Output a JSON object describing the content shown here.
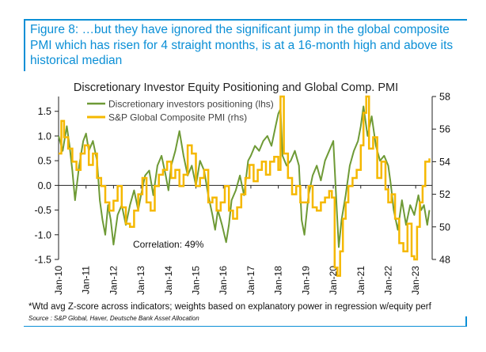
{
  "figure": {
    "title": "Figure 8: …but they have ignored the significant jump in the global composite PMI which has risen for 4 straight months, is at a 16-month high and above its historical median",
    "footnote": "*Wtd avg Z-score across indicators; weights based on explanatory power in regression w/equity perf",
    "source": "Source : S&P Global, Haver, Deutsche Bank Asset Allocation"
  },
  "colors": {
    "accent": "#0b8fd6",
    "positioning": "#6e9a36",
    "pmi": "#f5b800",
    "axis": "#222222"
  },
  "chart_data": {
    "type": "line",
    "title": "Discretionary Investor Equity Positioning and Global Comp. PMI",
    "annotation": "Correlation: 49%",
    "xlim": [
      2010,
      2023.6
    ],
    "x_ticks": [
      {
        "label": "Jan-10",
        "value": 2010
      },
      {
        "label": "Jan-11",
        "value": 2011
      },
      {
        "label": "Jan-12",
        "value": 2012
      },
      {
        "label": "Jan-13",
        "value": 2013
      },
      {
        "label": "Jan-14",
        "value": 2014
      },
      {
        "label": "Jan-15",
        "value": 2015
      },
      {
        "label": "Jan-16",
        "value": 2016
      },
      {
        "label": "Jan-17",
        "value": 2017
      },
      {
        "label": "Jan-18",
        "value": 2018
      },
      {
        "label": "Jan-19",
        "value": 2019
      },
      {
        "label": "Jan-20",
        "value": 2020
      },
      {
        "label": "Jan-21",
        "value": 2021
      },
      {
        "label": "Jan-22",
        "value": 2022
      },
      {
        "label": "Jan-23",
        "value": 2023
      }
    ],
    "y_left": {
      "lim": [
        -1.5,
        1.8
      ],
      "ticks": [
        {
          "label": "1.5",
          "value": 1.5
        },
        {
          "label": "1.0",
          "value": 1.0
        },
        {
          "label": "0.5",
          "value": 0.5
        },
        {
          "label": "0.0",
          "value": 0.0
        },
        {
          "label": "-0.5",
          "value": -0.5
        },
        {
          "label": "-1.0",
          "value": -1.0
        },
        {
          "label": "-1.5",
          "value": -1.5
        }
      ]
    },
    "y_right": {
      "lim": [
        48,
        58
      ],
      "ticks": [
        {
          "label": "58",
          "value": 58
        },
        {
          "label": "56",
          "value": 56
        },
        {
          "label": "54",
          "value": 54
        },
        {
          "label": "52",
          "value": 52
        },
        {
          "label": "50",
          "value": 50
        },
        {
          "label": "48",
          "value": 48
        }
      ]
    },
    "series": [
      {
        "name": "Discretionary investors positioning (lhs)",
        "axis": "left",
        "x": [
          2010.0,
          2010.15,
          2010.3,
          2010.4,
          2010.5,
          2010.6,
          2010.75,
          2010.9,
          2011.0,
          2011.1,
          2011.25,
          2011.4,
          2011.5,
          2011.6,
          2011.7,
          2011.8,
          2011.9,
          2012.0,
          2012.15,
          2012.3,
          2012.45,
          2012.6,
          2012.75,
          2012.9,
          2013.0,
          2013.15,
          2013.3,
          2013.45,
          2013.6,
          2013.75,
          2013.9,
          2014.0,
          2014.1,
          2014.25,
          2014.4,
          2014.55,
          2014.7,
          2014.85,
          2015.0,
          2015.15,
          2015.3,
          2015.45,
          2015.6,
          2015.7,
          2015.8,
          2015.95,
          2016.1,
          2016.2,
          2016.3,
          2016.45,
          2016.6,
          2016.75,
          2016.9,
          2017.0,
          2017.15,
          2017.3,
          2017.45,
          2017.6,
          2017.75,
          2017.9,
          2018.0,
          2018.08,
          2018.15,
          2018.3,
          2018.45,
          2018.6,
          2018.75,
          2018.85,
          2018.95,
          2019.1,
          2019.25,
          2019.4,
          2019.55,
          2019.7,
          2019.85,
          2020.0,
          2020.12,
          2020.2,
          2020.3,
          2020.45,
          2020.6,
          2020.75,
          2020.9,
          2021.0,
          2021.1,
          2021.25,
          2021.4,
          2021.55,
          2021.7,
          2021.85,
          2022.0,
          2022.1,
          2022.2,
          2022.35,
          2022.5,
          2022.65,
          2022.8,
          2022.95,
          2023.1,
          2023.2,
          2023.3,
          2023.42,
          2023.5
        ],
        "y": [
          1.0,
          0.7,
          1.2,
          0.8,
          0.3,
          -0.3,
          0.4,
          0.9,
          1.05,
          0.7,
          0.9,
          0.5,
          -0.3,
          -0.7,
          -1.0,
          -0.4,
          -0.7,
          -1.2,
          -0.6,
          -0.4,
          -0.8,
          -0.4,
          -0.1,
          -0.5,
          -0.2,
          0.2,
          0.3,
          -0.2,
          0.4,
          0.6,
          0.2,
          -0.1,
          0.4,
          0.7,
          1.1,
          0.6,
          0.2,
          0.4,
          0.0,
          0.5,
          0.3,
          -0.2,
          -0.6,
          -0.9,
          -0.5,
          -0.8,
          -1.15,
          -0.8,
          -0.3,
          -0.1,
          0.2,
          -0.2,
          0.5,
          0.6,
          0.8,
          0.7,
          0.9,
          1.0,
          0.8,
          1.2,
          1.45,
          1.55,
          0.6,
          0.4,
          0.5,
          0.7,
          0.4,
          -0.7,
          -1.0,
          -0.2,
          0.2,
          0.4,
          0.1,
          0.5,
          0.7,
          0.9,
          -0.4,
          -1.25,
          -0.7,
          -0.2,
          0.4,
          0.7,
          0.9,
          1.2,
          1.6,
          1.0,
          1.4,
          0.8,
          0.5,
          0.6,
          0.4,
          0.0,
          -0.5,
          -0.9,
          -0.3,
          -0.8,
          -0.4,
          -0.6,
          -0.2,
          -0.5,
          -0.4,
          -0.8,
          -0.5
        ]
      },
      {
        "name": "S&P Global Composite PMI (rhs)",
        "axis": "right",
        "x": [
          2010.0,
          2010.1,
          2010.2,
          2010.35,
          2010.5,
          2010.65,
          2010.8,
          2010.95,
          2011.1,
          2011.25,
          2011.4,
          2011.55,
          2011.7,
          2011.85,
          2012.0,
          2012.15,
          2012.3,
          2012.45,
          2012.6,
          2012.75,
          2012.9,
          2013.05,
          2013.2,
          2013.35,
          2013.5,
          2013.65,
          2013.8,
          2013.95,
          2014.1,
          2014.25,
          2014.4,
          2014.55,
          2014.7,
          2014.85,
          2015.0,
          2015.15,
          2015.3,
          2015.45,
          2015.6,
          2015.75,
          2015.9,
          2016.05,
          2016.2,
          2016.35,
          2016.5,
          2016.65,
          2016.8,
          2016.95,
          2017.1,
          2017.25,
          2017.4,
          2017.55,
          2017.7,
          2017.85,
          2018.0,
          2018.08,
          2018.2,
          2018.35,
          2018.5,
          2018.65,
          2018.8,
          2018.95,
          2019.1,
          2019.25,
          2019.4,
          2019.55,
          2019.7,
          2019.85,
          2019.95,
          2020.05,
          2020.15,
          2020.25,
          2020.35,
          2020.45,
          2020.55,
          2020.7,
          2020.85,
          2021.0,
          2021.1,
          2021.2,
          2021.3,
          2021.45,
          2021.6,
          2021.75,
          2021.9,
          2022.0,
          2022.12,
          2022.25,
          2022.4,
          2022.55,
          2022.7,
          2022.85,
          2022.95,
          2023.05,
          2023.15,
          2023.25,
          2023.35,
          2023.5
        ],
        "y": [
          54.5,
          56.5,
          55.5,
          54.8,
          54.0,
          53.5,
          54.5,
          55.0,
          53.8,
          54.5,
          53.0,
          52.5,
          51.5,
          51.0,
          51.6,
          52.5,
          51.2,
          50.2,
          50.0,
          51.0,
          52.0,
          53.0,
          51.5,
          51.0,
          52.5,
          53.2,
          53.5,
          54.0,
          53.0,
          53.5,
          52.5,
          53.2,
          55.0,
          54.5,
          52.5,
          53.0,
          53.5,
          51.5,
          51.8,
          51.0,
          51.5,
          52.5,
          51.0,
          50.5,
          51.2,
          52.0,
          53.0,
          53.8,
          52.8,
          53.5,
          54.0,
          53.2,
          54.0,
          54.3,
          53.5,
          58.0,
          54.5,
          53.0,
          52.0,
          52.5,
          51.5,
          51.5,
          52.5,
          51.2,
          51.0,
          51.5,
          51.8,
          52.2,
          51.8,
          47.5,
          47.0,
          48.5,
          50.5,
          51.5,
          52.5,
          53.0,
          53.5,
          55.0,
          57.0,
          58.0,
          54.8,
          55.5,
          53.0,
          54.0,
          52.3,
          51.5,
          52.0,
          50.5,
          49.0,
          48.5,
          50.2,
          48.2,
          48.0,
          50.0,
          51.5,
          52.5,
          54.0,
          54.2
        ]
      }
    ]
  }
}
